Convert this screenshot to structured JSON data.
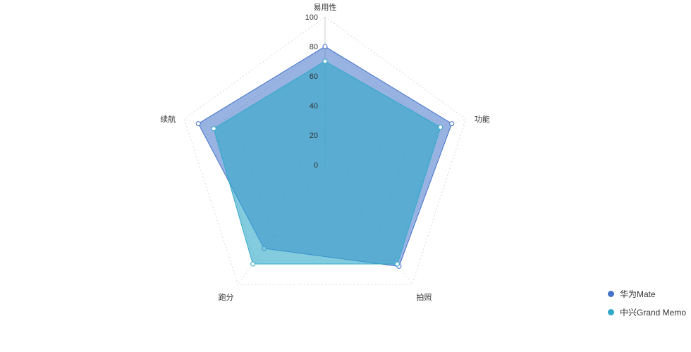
{
  "chart_data": {
    "type": "radar",
    "title": "",
    "indicators": [
      "易用性",
      "功能",
      "拍照",
      "跑分",
      "续航"
    ],
    "range": [
      0,
      100
    ],
    "ticks": [
      "0",
      "20",
      "40",
      "60",
      "80",
      "100"
    ],
    "grid": "dotted",
    "legend": "bottom-right",
    "series": [
      {
        "name": "华为Mate",
        "color": "#4472CA",
        "values": [
          80,
          90,
          85,
          70,
          90
        ]
      },
      {
        "name": "中兴Grand Memo",
        "color": "#30A9C9",
        "values": [
          70,
          82,
          83,
          83,
          79
        ]
      }
    ]
  }
}
